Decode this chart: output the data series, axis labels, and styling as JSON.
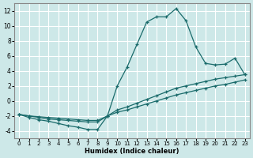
{
  "xlabel": "Humidex (Indice chaleur)",
  "ylabel": "",
  "xlim": [
    -0.5,
    23.5
  ],
  "ylim": [
    -5,
    13
  ],
  "yticks": [
    -4,
    -2,
    0,
    2,
    4,
    6,
    8,
    10,
    12
  ],
  "xticks": [
    0,
    1,
    2,
    3,
    4,
    5,
    6,
    7,
    8,
    9,
    10,
    11,
    12,
    13,
    14,
    15,
    16,
    17,
    18,
    19,
    20,
    21,
    22,
    23
  ],
  "bg_color": "#cde8e8",
  "grid_color": "#ffffff",
  "line_color": "#1a6b6b",
  "series1_x": [
    0,
    1,
    2,
    3,
    4,
    5,
    6,
    7,
    8,
    9,
    10,
    11,
    12,
    13,
    14,
    15,
    16,
    17,
    18,
    19,
    20,
    21,
    22,
    23
  ],
  "series1_y": [
    -1.8,
    -2.2,
    -2.5,
    -2.7,
    -3.0,
    -3.3,
    -3.5,
    -3.8,
    -3.8,
    -2.0,
    2.0,
    4.5,
    7.5,
    10.5,
    11.2,
    11.2,
    12.3,
    10.7,
    7.2,
    5.0,
    4.8,
    4.9,
    5.7,
    3.5
  ],
  "series2_x": [
    0,
    1,
    2,
    3,
    4,
    5,
    6,
    7,
    8,
    9,
    10,
    11,
    12,
    13,
    14,
    15,
    16,
    17,
    18,
    19,
    20,
    21,
    22,
    23
  ],
  "series2_y": [
    -1.8,
    -2.0,
    -2.2,
    -2.4,
    -2.5,
    -2.6,
    -2.7,
    -2.8,
    -2.8,
    -2.0,
    -1.2,
    -0.8,
    -0.3,
    0.2,
    0.7,
    1.2,
    1.7,
    2.0,
    2.3,
    2.6,
    2.9,
    3.1,
    3.3,
    3.5
  ],
  "series3_x": [
    0,
    1,
    2,
    3,
    4,
    5,
    6,
    7,
    8,
    9,
    10,
    11,
    12,
    13,
    14,
    15,
    16,
    17,
    18,
    19,
    20,
    21,
    22,
    23
  ],
  "series3_y": [
    -1.8,
    -2.0,
    -2.1,
    -2.2,
    -2.3,
    -2.4,
    -2.5,
    -2.6,
    -2.6,
    -2.0,
    -1.5,
    -1.2,
    -0.8,
    -0.4,
    0.0,
    0.4,
    0.8,
    1.1,
    1.4,
    1.7,
    2.0,
    2.2,
    2.5,
    2.8
  ]
}
